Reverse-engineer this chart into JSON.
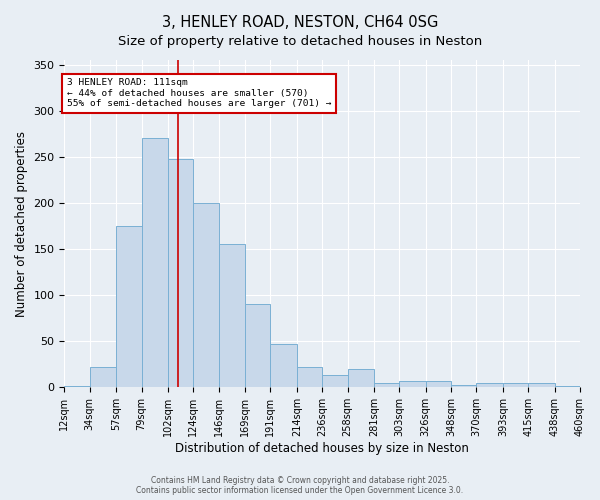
{
  "title_line1": "3, HENLEY ROAD, NESTON, CH64 0SG",
  "title_line2": "Size of property relative to detached houses in Neston",
  "xlabel": "Distribution of detached houses by size in Neston",
  "ylabel": "Number of detached properties",
  "bin_edges": [
    12,
    34,
    57,
    79,
    102,
    124,
    146,
    169,
    191,
    214,
    236,
    258,
    281,
    303,
    326,
    348,
    370,
    393,
    415,
    438,
    460
  ],
  "bar_heights": [
    2,
    22,
    175,
    270,
    248,
    200,
    155,
    90,
    47,
    22,
    13,
    20,
    5,
    7,
    7,
    3,
    5,
    5,
    5,
    2
  ],
  "bar_color": "#c8d8ea",
  "bar_edge_color": "#7ab0d4",
  "vline_x": 111,
  "vline_color": "#cc0000",
  "ylim": [
    0,
    355
  ],
  "yticks": [
    0,
    50,
    100,
    150,
    200,
    250,
    300,
    350
  ],
  "annotation_text": "3 HENLEY ROAD: 111sqm\n← 44% of detached houses are smaller (570)\n55% of semi-detached houses are larger (701) →",
  "annotation_box_color": "#ffffff",
  "annotation_box_edge": "#cc0000",
  "footer_line1": "Contains HM Land Registry data © Crown copyright and database right 2025.",
  "footer_line2": "Contains public sector information licensed under the Open Government Licence 3.0.",
  "background_color": "#e8eef4",
  "grid_color": "#ffffff",
  "title_fontsize": 10.5,
  "subtitle_fontsize": 9.5,
  "tick_label_fontsize": 7,
  "ylabel_fontsize": 8.5,
  "xlabel_fontsize": 8.5,
  "footer_fontsize": 5.5
}
